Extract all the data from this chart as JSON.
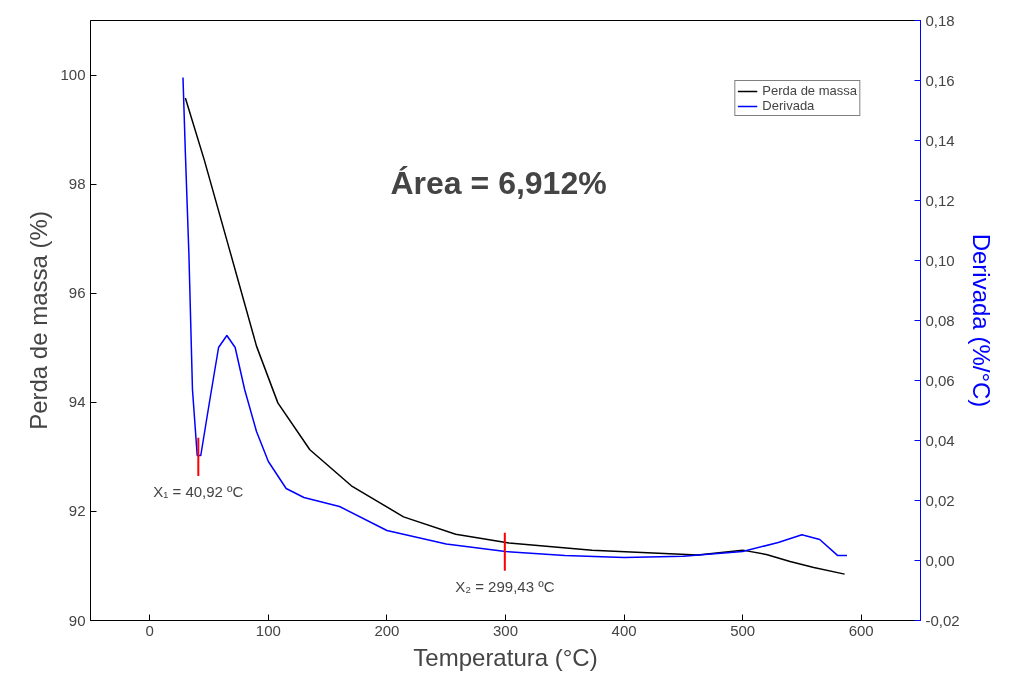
{
  "chart_data": {
    "type": "line",
    "xlabel": "Temperatura (°C)",
    "ylabel": "Perda de massa (%)",
    "y2label": "Derivada (%/°C)",
    "xlim": [
      -50,
      650
    ],
    "xticks": [
      0,
      100,
      200,
      300,
      400,
      500,
      600
    ],
    "ylim": [
      90,
      101
    ],
    "yticks": [
      90,
      92,
      94,
      96,
      98,
      100
    ],
    "y2lim": [
      -0.02,
      0.18
    ],
    "y2ticks": [
      {
        "value": -0.02,
        "label": "-0,02"
      },
      {
        "value": 0,
        "label": "0,00"
      },
      {
        "value": 0.02,
        "label": "0,02"
      },
      {
        "value": 0.04,
        "label": "0,04"
      },
      {
        "value": 0.06,
        "label": "0,06"
      },
      {
        "value": 0.08,
        "label": "0,08"
      },
      {
        "value": 0.1,
        "label": "0,10"
      },
      {
        "value": 0.12,
        "label": "0,12"
      },
      {
        "value": 0.14,
        "label": "0,14"
      },
      {
        "value": 0.16,
        "label": "0,16"
      },
      {
        "value": 0.18,
        "label": "0,18"
      }
    ],
    "series": [
      {
        "name": "Perda de massa",
        "color": "#000000",
        "x": [
          30,
          46,
          68,
          90,
          108,
          135,
          170,
          214,
          258,
          303,
          373,
          462,
          500,
          520,
          540,
          560,
          586
        ],
        "values": [
          99.58,
          98.44,
          96.74,
          95.03,
          93.99,
          93.13,
          92.47,
          91.9,
          91.58,
          91.42,
          91.29,
          91.2,
          91.29,
          91.21,
          91.08,
          90.97,
          90.85
        ]
      },
      {
        "name": "Derivada",
        "color": "#0000ff",
        "axis": "y2",
        "x": [
          28,
          30,
          33,
          36,
          40,
          43,
          50,
          58,
          65,
          72,
          80,
          90,
          100,
          115,
          130,
          160,
          200,
          250,
          300,
          350,
          400,
          450,
          500,
          530,
          550,
          565,
          580,
          588
        ],
        "values": [
          0.161,
          0.136,
          0.102,
          0.057,
          0.035,
          0.035,
          0.052,
          0.071,
          0.075,
          0.071,
          0.057,
          0.043,
          0.033,
          0.024,
          0.021,
          0.018,
          0.01,
          0.0055,
          0.003,
          0.0017,
          0.001,
          0.0014,
          0.003,
          0.006,
          0.0086,
          0.007,
          0.0017,
          0.0017
        ]
      }
    ],
    "annotations": [
      {
        "text": "X₁ = 40,92 ºC",
        "x": 40.92,
        "y": 93.0
      },
      {
        "text": "X₂ = 299,43 ºC",
        "x": 299.43,
        "y": 91.26
      },
      "Área = 6,912%"
    ],
    "legend": "top right",
    "grid": false
  }
}
